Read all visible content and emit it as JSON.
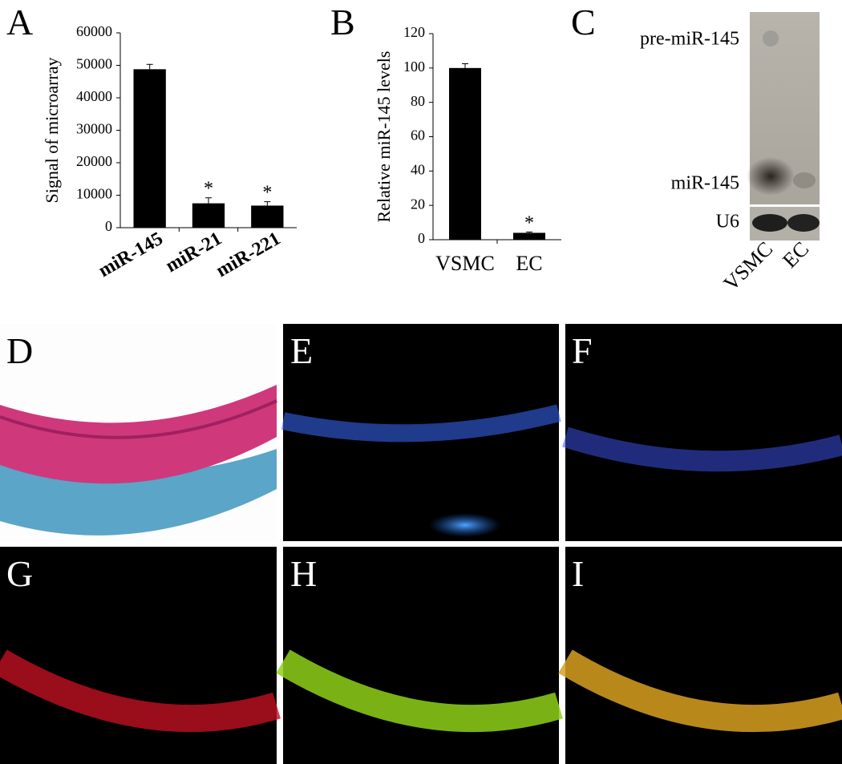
{
  "chart_data": [
    {
      "type": "bar",
      "panel_label": "A",
      "y_label": "Signal of microarray",
      "categories": [
        "miR-145",
        "miR-21",
        "miR-221"
      ],
      "values": [
        48800,
        7500,
        6800
      ],
      "errors": [
        1500,
        1700,
        1200
      ],
      "annotations": [
        null,
        "*",
        "*"
      ],
      "color": "#000000",
      "ylim": [
        0,
        60000
      ],
      "yticks": [
        0,
        10000,
        20000,
        30000,
        40000,
        50000,
        60000
      ]
    },
    {
      "type": "bar",
      "panel_label": "B",
      "y_label": "Relative miR-145 levels",
      "categories": [
        "VSMC",
        "EC"
      ],
      "values": [
        100,
        4
      ],
      "errors": [
        2.5,
        0.5
      ],
      "annotations": [
        null,
        "*"
      ],
      "color": "#000000",
      "ylim": [
        0,
        120
      ],
      "yticks": [
        0,
        20,
        40,
        60,
        80,
        100,
        120
      ]
    }
  ],
  "blot": {
    "panel_label": "C",
    "bands": [
      "pre-miR-145",
      "miR-145",
      "U6"
    ],
    "lanes": [
      "VSMC",
      "EC"
    ]
  },
  "images": [
    "D",
    "E",
    "F",
    "G",
    "H",
    "I"
  ]
}
